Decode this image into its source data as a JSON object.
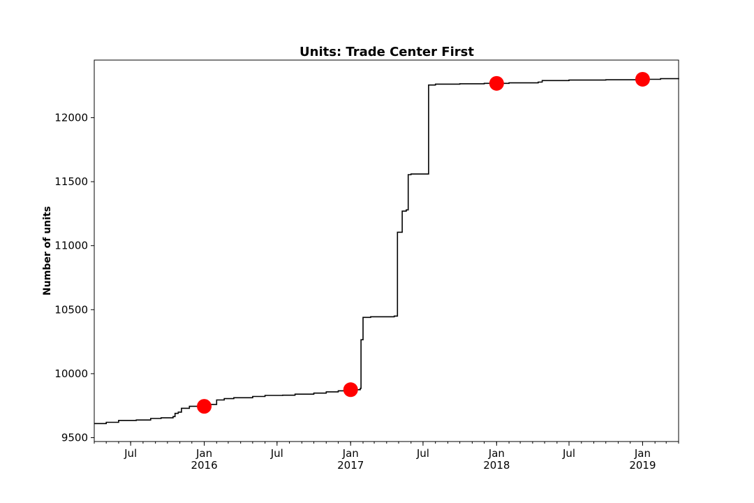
{
  "chart_data": {
    "type": "line",
    "title": "Units: Trade Center First",
    "xlabel": "",
    "ylabel": "Number of units",
    "xlim": [
      "2015-04-01",
      "2019-04-01"
    ],
    "ylim": [
      9470,
      12450
    ],
    "grid": false,
    "x_ticks": [
      {
        "date": "2015-07-01",
        "label": "Jul",
        "year": ""
      },
      {
        "date": "2016-01-01",
        "label": "Jan",
        "year": "2016"
      },
      {
        "date": "2016-07-01",
        "label": "Jul",
        "year": ""
      },
      {
        "date": "2017-01-01",
        "label": "Jan",
        "year": "2017"
      },
      {
        "date": "2017-07-01",
        "label": "Jul",
        "year": ""
      },
      {
        "date": "2018-01-01",
        "label": "Jan",
        "year": "2018"
      },
      {
        "date": "2018-07-01",
        "label": "Jul",
        "year": ""
      },
      {
        "date": "2019-01-01",
        "label": "Jan",
        "year": "2019"
      }
    ],
    "y_ticks": [
      9500,
      10000,
      10500,
      11000,
      11500,
      12000
    ],
    "series": [
      {
        "style": "step",
        "color": "#000000",
        "points": [
          [
            "2015-04-01",
            9610
          ],
          [
            "2015-05-01",
            9620
          ],
          [
            "2015-06-01",
            9635
          ],
          [
            "2015-07-15",
            9638
          ],
          [
            "2015-08-20",
            9650
          ],
          [
            "2015-09-15",
            9655
          ],
          [
            "2015-10-15",
            9665
          ],
          [
            "2015-10-20",
            9690
          ],
          [
            "2015-10-28",
            9700
          ],
          [
            "2015-11-05",
            9730
          ],
          [
            "2015-11-25",
            9745
          ],
          [
            "2016-01-15",
            9760
          ],
          [
            "2016-02-01",
            9795
          ],
          [
            "2016-02-20",
            9805
          ],
          [
            "2016-03-15",
            9812
          ],
          [
            "2016-05-01",
            9822
          ],
          [
            "2016-06-01",
            9830
          ],
          [
            "2016-07-15",
            9832
          ],
          [
            "2016-08-15",
            9840
          ],
          [
            "2016-10-01",
            9848
          ],
          [
            "2016-11-01",
            9858
          ],
          [
            "2016-12-01",
            9866
          ],
          [
            "2017-01-01",
            9875
          ],
          [
            "2017-01-25",
            9885
          ],
          [
            "2017-01-27",
            10265
          ],
          [
            "2017-02-01",
            10440
          ],
          [
            "2017-02-20",
            10445
          ],
          [
            "2017-04-20",
            10450
          ],
          [
            "2017-04-28",
            11105
          ],
          [
            "2017-05-10",
            11270
          ],
          [
            "2017-05-20",
            11280
          ],
          [
            "2017-05-25",
            11555
          ],
          [
            "2017-06-01",
            11560
          ],
          [
            "2017-07-15",
            12255
          ],
          [
            "2017-08-01",
            12262
          ],
          [
            "2017-10-01",
            12265
          ],
          [
            "2017-12-01",
            12268
          ],
          [
            "2018-02-01",
            12272
          ],
          [
            "2018-04-15",
            12278
          ],
          [
            "2018-04-25",
            12290
          ],
          [
            "2018-07-01",
            12294
          ],
          [
            "2018-10-01",
            12296
          ],
          [
            "2019-01-01",
            12300
          ],
          [
            "2019-02-15",
            12305
          ],
          [
            "2019-04-01",
            12310
          ]
        ]
      }
    ],
    "markers": {
      "color": "#ff0000",
      "points": [
        [
          "2016-01-01",
          9745
        ],
        [
          "2017-01-01",
          9875
        ],
        [
          "2018-01-01",
          12268
        ],
        [
          "2019-01-01",
          12300
        ]
      ]
    }
  }
}
